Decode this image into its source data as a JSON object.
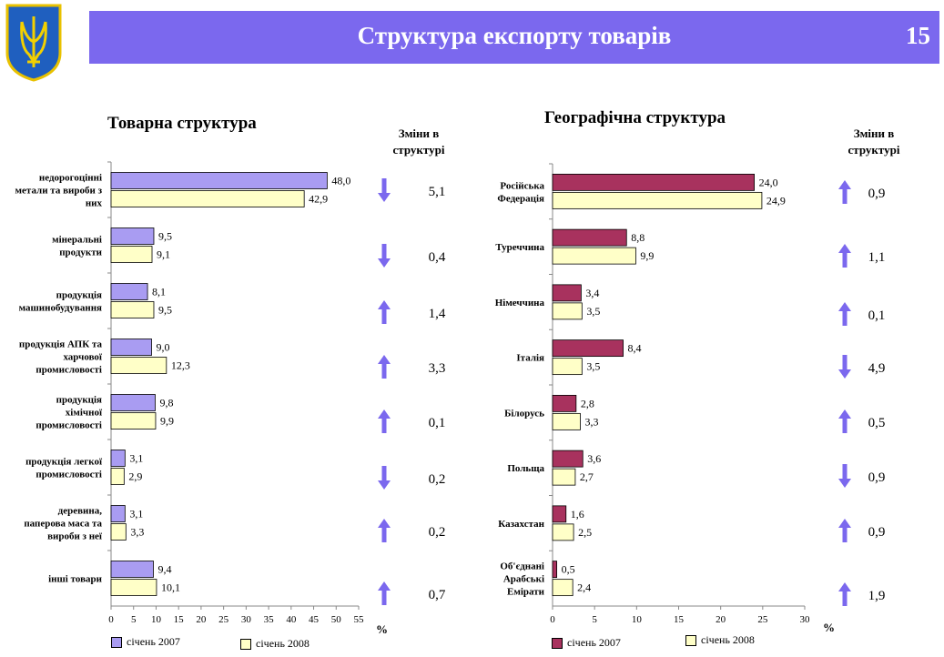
{
  "header": {
    "title": "Структура експорту товарів",
    "page_number": "15"
  },
  "colors": {
    "header_bg": "#7b68ee",
    "left_2007": "#a99cf2",
    "left_2008": "#ffffc8",
    "right_2007": "#a8325e",
    "right_2008": "#ffffc8",
    "arrow": "#7b68ee"
  },
  "change_header": "Зміни в структурі",
  "pct_unit": "%",
  "chart_data": [
    {
      "type": "bar",
      "title": "Товарна структура",
      "orientation": "horizontal",
      "categories": [
        "недорогоцінні метали та вироби з них",
        "мінеральні продукти",
        "продукція машинобудування",
        "продукція АПК та харчової промисловості",
        "продукція хімічної промисловості",
        "продукція легкої промисловості",
        "деревина, паперова маса та вироби з неї",
        "інші товари"
      ],
      "category_lines": [
        [
          "недорогоцінні",
          "метали та вироби з",
          "них"
        ],
        [
          "мінеральні",
          "продукти"
        ],
        [
          "продукція",
          "машинобудування"
        ],
        [
          "продукція АПК та",
          "харчової",
          "промисловості"
        ],
        [
          "продукція",
          "хімічної",
          "промисловості"
        ],
        [
          "продукція легкої",
          "промисловості"
        ],
        [
          "деревина,",
          "паперова маса та",
          "вироби з неї"
        ],
        [
          "інші товари"
        ]
      ],
      "series": [
        {
          "name": "січень 2007",
          "values": [
            48.0,
            9.5,
            8.1,
            9.0,
            9.8,
            3.1,
            3.1,
            9.4
          ],
          "labels": [
            "48,0",
            "9,5",
            "8,1",
            "9,0",
            "9,8",
            "3,1",
            "3,1",
            "9,4"
          ]
        },
        {
          "name": "січень 2008",
          "values": [
            42.9,
            9.1,
            9.5,
            12.3,
            9.9,
            2.9,
            3.3,
            10.1
          ],
          "labels": [
            "42,9",
            "9,1",
            "9,5",
            "12,3",
            "9,9",
            "2,9",
            "3,3",
            "10,1"
          ]
        }
      ],
      "changes": [
        {
          "direction": "down",
          "value": "5,1"
        },
        {
          "direction": "down",
          "value": "0,4"
        },
        {
          "direction": "up",
          "value": "1,4"
        },
        {
          "direction": "up",
          "value": "3,3"
        },
        {
          "direction": "up",
          "value": "0,1"
        },
        {
          "direction": "down",
          "value": "0,2"
        },
        {
          "direction": "up",
          "value": "0,2"
        },
        {
          "direction": "up",
          "value": "0,7"
        }
      ],
      "xlim": [
        0,
        55
      ],
      "xticks": [
        0,
        5,
        10,
        15,
        20,
        25,
        30,
        35,
        40,
        45,
        50,
        55
      ],
      "legend": "bottom"
    },
    {
      "type": "bar",
      "title": "Географічна структура",
      "orientation": "horizontal",
      "categories": [
        "Російська Федерація",
        "Туреччина",
        "Німеччина",
        "Італія",
        "Білорусь",
        "Польща",
        "Казахстан",
        "Об'єднані Арабські Емірати"
      ],
      "category_lines": [
        [
          "Російська",
          "Федерація"
        ],
        [
          "Туреччина"
        ],
        [
          "Німеччина"
        ],
        [
          "Італія"
        ],
        [
          "Білорусь"
        ],
        [
          "Польща"
        ],
        [
          "Казахстан"
        ],
        [
          "Об'єднані",
          "Арабські",
          "Емірати"
        ]
      ],
      "series": [
        {
          "name": "січень 2007",
          "values": [
            24.0,
            8.8,
            3.4,
            8.4,
            2.8,
            3.6,
            1.6,
            0.5
          ],
          "labels": [
            "24,0",
            "8,8",
            "3,4",
            "8,4",
            "2,8",
            "3,6",
            "1,6",
            "0,5"
          ]
        },
        {
          "name": "січень 2008",
          "values": [
            24.9,
            9.9,
            3.5,
            3.5,
            3.3,
            2.7,
            2.5,
            2.4
          ],
          "labels": [
            "24,9",
            "9,9",
            "3,5",
            "3,5",
            "3,3",
            "2,7",
            "2,5",
            "2,4"
          ]
        }
      ],
      "changes": [
        {
          "direction": "up",
          "value": "0,9"
        },
        {
          "direction": "up",
          "value": "1,1"
        },
        {
          "direction": "up",
          "value": "0,1"
        },
        {
          "direction": "down",
          "value": "4,9"
        },
        {
          "direction": "up",
          "value": "0,5"
        },
        {
          "direction": "down",
          "value": "0,9"
        },
        {
          "direction": "up",
          "value": "0,9"
        },
        {
          "direction": "up",
          "value": "1,9"
        }
      ],
      "xlim": [
        0,
        30
      ],
      "xticks": [
        0,
        5,
        10,
        15,
        20,
        25,
        30
      ],
      "legend": "bottom"
    }
  ]
}
